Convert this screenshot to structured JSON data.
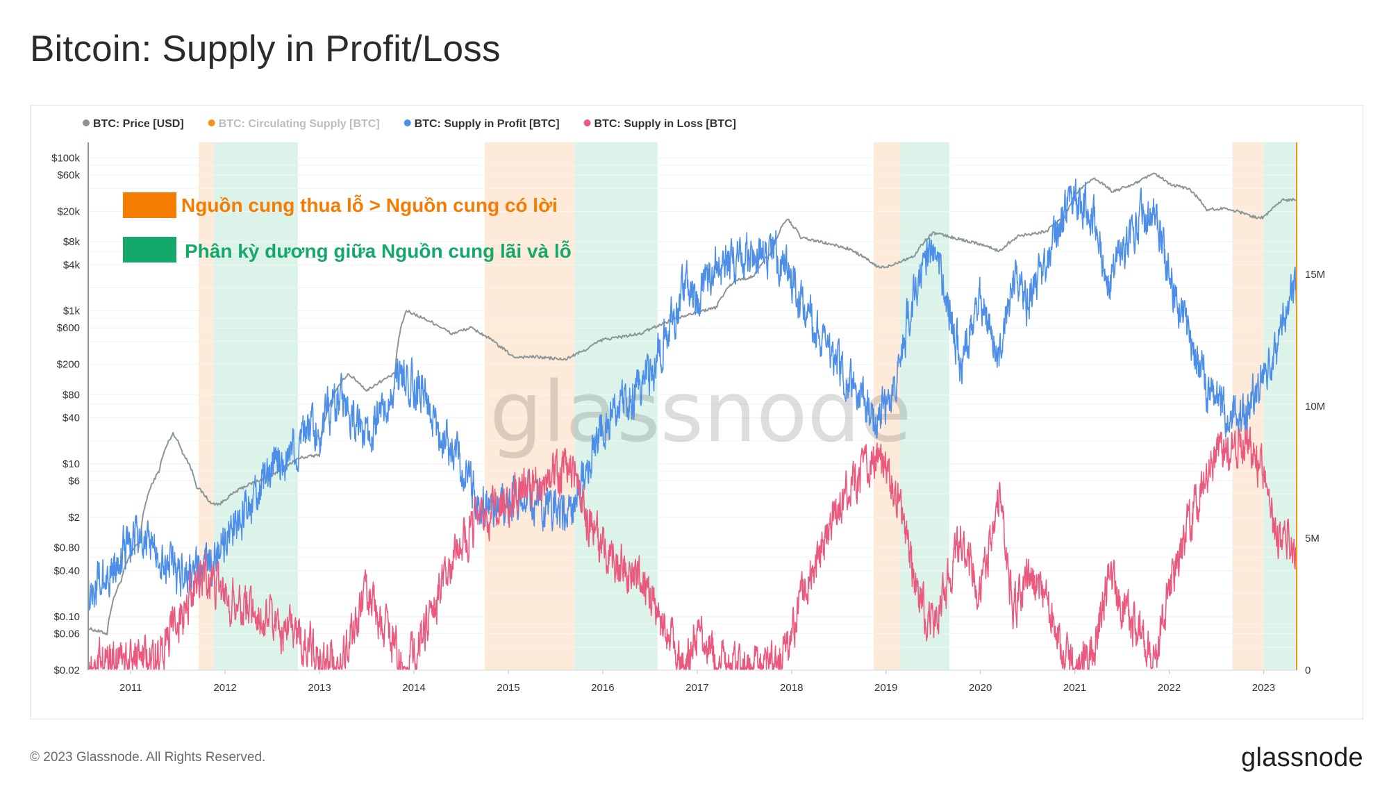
{
  "page": {
    "title": "Bitcoin: Supply in Profit/Loss",
    "copyright": "© 2023 Glassnode. All Rights Reserved.",
    "brand": "glassnode",
    "watermark": "glassnode"
  },
  "chart_data": {
    "type": "line",
    "title": "Bitcoin: Supply in Profit/Loss",
    "legend": [
      {
        "name": "BTC: Price [USD]",
        "color": "#8a9696",
        "enabled": true
      },
      {
        "name": "BTC: Circulating Supply [BTC]",
        "color": "#f7931a",
        "enabled": false
      },
      {
        "name": "BTC: Supply in Profit [BTC]",
        "color": "#4c8ee8",
        "enabled": true
      },
      {
        "name": "BTC: Supply in Loss [BTC]",
        "color": "#ea5a7e",
        "enabled": true
      }
    ],
    "legend_position": "top-left",
    "x_ticks": [
      "2011",
      "2012",
      "2013",
      "2014",
      "2015",
      "2016",
      "2017",
      "2018",
      "2019",
      "2020",
      "2021",
      "2022",
      "2023"
    ],
    "x_range": [
      2010.55,
      2023.35
    ],
    "y_left": {
      "scale": "log",
      "unit": "USD",
      "ticks": [
        "$100k",
        "$60k",
        "$20k",
        "$8k",
        "$4k",
        "$1k",
        "$600",
        "$200",
        "$80",
        "$40",
        "$10",
        "$6",
        "$2",
        "$0.80",
        "$0.40",
        "$0.10",
        "$0.06",
        "$0.02"
      ]
    },
    "y_right": {
      "scale": "linear",
      "unit": "BTC",
      "range": [
        0,
        20000000
      ],
      "ticks": [
        "0",
        "5M",
        "10M",
        "15M"
      ]
    },
    "annotations": [
      {
        "label": "Nguồn cung thua lỗ > Nguồn cung có lời",
        "color": "#f57c00",
        "band_color": "#fde3cc"
      },
      {
        "label": "Phân kỳ dương giữa Nguồn cung lãi và lỗ",
        "color": "#14a86b",
        "band_color": "#d3f0e3"
      }
    ],
    "orange_periods": [
      [
        2011.72,
        2011.88
      ],
      [
        2014.75,
        2015.7
      ],
      [
        2018.87,
        2019.15
      ],
      [
        2022.67,
        2023.0
      ]
    ],
    "green_periods": [
      [
        2011.88,
        2012.77
      ],
      [
        2015.7,
        2016.58
      ],
      [
        2019.15,
        2019.67
      ],
      [
        2023.0,
        2023.35
      ]
    ],
    "series": [
      {
        "name": "BTC: Price [USD]",
        "x": [
          2010.55,
          2010.75,
          2010.9,
          2011.1,
          2011.3,
          2011.45,
          2011.55,
          2011.7,
          2011.85,
          2011.95,
          2012.2,
          2012.5,
          2012.8,
          2013.0,
          2013.2,
          2013.3,
          2013.5,
          2013.8,
          2013.92,
          2014.1,
          2014.4,
          2014.6,
          2014.9,
          2015.05,
          2015.3,
          2015.6,
          2015.8,
          2016.0,
          2016.4,
          2016.6,
          2016.9,
          2017.2,
          2017.4,
          2017.6,
          2017.8,
          2017.95,
          2018.1,
          2018.3,
          2018.6,
          2018.9,
          2019.0,
          2019.3,
          2019.5,
          2019.8,
          2020.0,
          2020.2,
          2020.4,
          2020.7,
          2020.9,
          2021.0,
          2021.2,
          2021.4,
          2021.6,
          2021.85,
          2022.0,
          2022.2,
          2022.4,
          2022.6,
          2022.9,
          2023.0,
          2023.2,
          2023.35
        ],
        "values": [
          0.07,
          0.06,
          0.3,
          1,
          8,
          25,
          14,
          5,
          3,
          3,
          5,
          7,
          12,
          13,
          100,
          150,
          90,
          150,
          1000,
          800,
          500,
          600,
          350,
          250,
          250,
          230,
          300,
          420,
          500,
          650,
          900,
          1100,
          2500,
          2800,
          6000,
          16000,
          9000,
          8000,
          6500,
          3800,
          3700,
          5200,
          10500,
          8500,
          7500,
          6000,
          9500,
          11000,
          17000,
          32000,
          55000,
          36000,
          44000,
          62000,
          45000,
          40000,
          21000,
          22000,
          17000,
          16500,
          28000,
          29000
        ]
      },
      {
        "name": "BTC: Supply in Profit [BTC]",
        "x": [
          2010.55,
          2010.7,
          2010.9,
          2011.1,
          2011.3,
          2011.45,
          2011.6,
          2011.75,
          2011.85,
          2011.95,
          2012.2,
          2012.5,
          2012.8,
          2013.0,
          2013.2,
          2013.35,
          2013.5,
          2013.7,
          2013.9,
          2014.1,
          2014.3,
          2014.5,
          2014.7,
          2014.9,
          2015.1,
          2015.4,
          2015.65,
          2015.8,
          2016.0,
          2016.3,
          2016.5,
          2016.7,
          2016.9,
          2017.0,
          2017.2,
          2017.45,
          2017.7,
          2017.95,
          2018.1,
          2018.3,
          2018.5,
          2018.7,
          2018.9,
          2019.1,
          2019.3,
          2019.45,
          2019.6,
          2019.8,
          2020.0,
          2020.2,
          2020.35,
          2020.5,
          2020.7,
          2020.9,
          2021.0,
          2021.2,
          2021.35,
          2021.5,
          2021.7,
          2021.85,
          2022.0,
          2022.2,
          2022.4,
          2022.6,
          2022.8,
          2023.0,
          2023.15,
          2023.3,
          2023.35
        ],
        "values": [
          3.1,
          3.3,
          4.5,
          5.2,
          4.3,
          3.8,
          3.5,
          3.6,
          4.1,
          4.7,
          5.8,
          7.6,
          8.7,
          9.3,
          10.3,
          9.6,
          8.8,
          10.1,
          11.2,
          10.6,
          8.9,
          7.8,
          6.4,
          6.1,
          6.6,
          6.3,
          5.8,
          7.3,
          9.2,
          10.5,
          11.2,
          12.9,
          14.6,
          14.1,
          15.2,
          15.5,
          16.0,
          15.4,
          13.8,
          12.6,
          11.5,
          10.6,
          9.4,
          10.8,
          14.4,
          16.1,
          14.8,
          11.5,
          14.2,
          11.5,
          14.9,
          14.0,
          15.5,
          17.6,
          17.9,
          17.0,
          14.6,
          15.8,
          17.1,
          17.4,
          15.0,
          12.8,
          10.6,
          9.8,
          9.5,
          11.2,
          12.0,
          14.5,
          13.8
        ]
      },
      {
        "name": "BTC: Supply in Loss [BTC]",
        "x": [
          2010.55,
          2010.7,
          2010.9,
          2011.1,
          2011.3,
          2011.45,
          2011.6,
          2011.75,
          2011.85,
          2011.95,
          2012.2,
          2012.5,
          2012.8,
          2013.0,
          2013.2,
          2013.35,
          2013.5,
          2013.7,
          2013.9,
          2014.1,
          2014.3,
          2014.5,
          2014.7,
          2014.9,
          2015.1,
          2015.4,
          2015.65,
          2015.8,
          2016.0,
          2016.3,
          2016.5,
          2016.7,
          2016.9,
          2017.0,
          2017.2,
          2017.45,
          2017.7,
          2017.95,
          2018.1,
          2018.3,
          2018.5,
          2018.7,
          2018.9,
          2019.1,
          2019.3,
          2019.45,
          2019.6,
          2019.8,
          2020.0,
          2020.2,
          2020.35,
          2020.5,
          2020.7,
          2020.9,
          2021.0,
          2021.2,
          2021.35,
          2021.5,
          2021.7,
          2021.85,
          2022.0,
          2022.2,
          2022.4,
          2022.6,
          2022.8,
          2023.0,
          2023.15,
          2023.3,
          2023.35
        ],
        "values": [
          0.1,
          0.3,
          0.5,
          0.4,
          0.6,
          1.5,
          2.6,
          3.8,
          3.4,
          3.0,
          2.5,
          1.8,
          1.2,
          0.6,
          0.2,
          1.5,
          2.8,
          1.6,
          0.1,
          1.2,
          3.2,
          4.8,
          5.7,
          6.3,
          6.8,
          7.2,
          7.9,
          6.0,
          4.5,
          3.8,
          2.9,
          1.2,
          0.4,
          1.5,
          0.5,
          0.3,
          0.2,
          0.4,
          2.8,
          4.6,
          6.2,
          7.3,
          8.3,
          7.0,
          3.6,
          1.5,
          2.8,
          5.1,
          3.0,
          6.4,
          2.2,
          3.8,
          2.5,
          0.4,
          0.2,
          0.8,
          3.5,
          2.4,
          1.2,
          0.3,
          3.1,
          5.4,
          7.6,
          8.2,
          8.7,
          7.5,
          5.0,
          4.8,
          4.2
        ]
      }
    ]
  }
}
